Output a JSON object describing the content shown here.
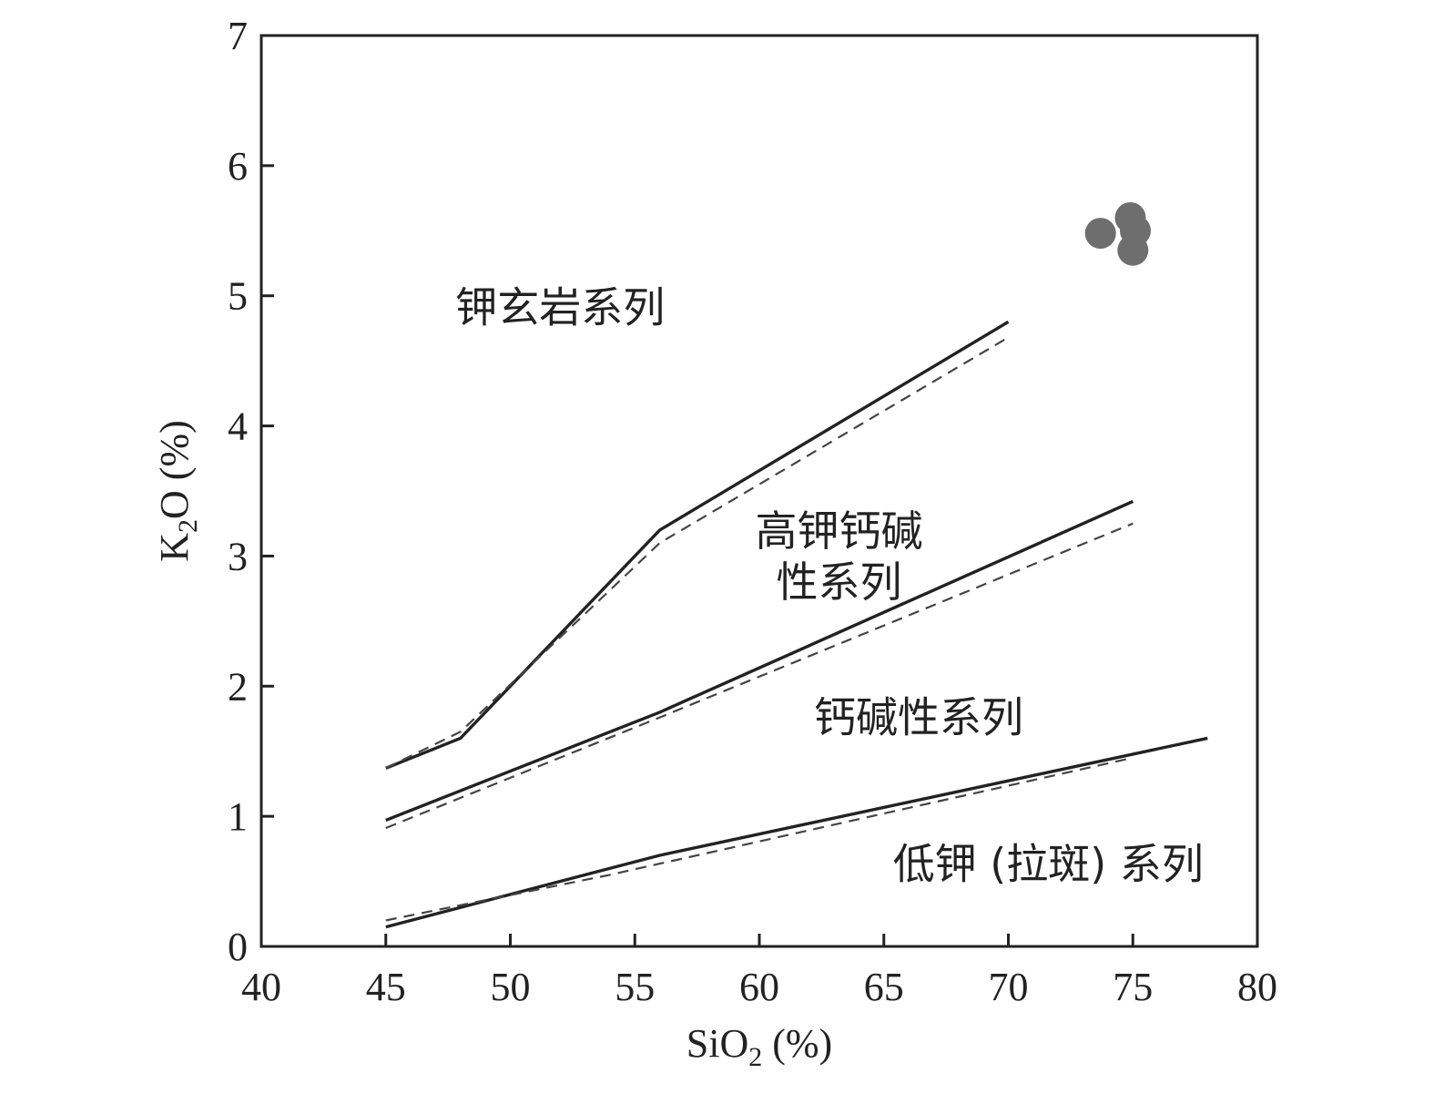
{
  "chart_data": {
    "type": "scatter",
    "title": "",
    "xlabel": "SiO",
    "xlabel_sub": "2",
    "xlabel_unit": " (%)",
    "ylabel": "K",
    "ylabel_sub": "2",
    "ylabel_unit": "O (%)",
    "xlim": [
      40,
      80
    ],
    "ylim": [
      0,
      7
    ],
    "xticks": [
      40,
      45,
      50,
      55,
      60,
      65,
      70,
      75,
      80
    ],
    "yticks": [
      0,
      1,
      2,
      3,
      4,
      5,
      6,
      7
    ],
    "grid": false,
    "boundary_lines": [
      {
        "style": "solid",
        "points": [
          [
            45,
            1.37
          ],
          [
            48,
            1.6
          ],
          [
            56,
            3.2
          ],
          [
            70,
            4.8
          ]
        ]
      },
      {
        "style": "dashed",
        "points": [
          [
            45,
            1.37
          ],
          [
            48,
            1.65
          ],
          [
            56,
            3.1
          ],
          [
            70,
            4.68
          ]
        ]
      },
      {
        "style": "solid",
        "points": [
          [
            45,
            0.97
          ],
          [
            56,
            1.8
          ],
          [
            75,
            3.42
          ]
        ]
      },
      {
        "style": "dashed",
        "points": [
          [
            45,
            0.91
          ],
          [
            56,
            1.76
          ],
          [
            75,
            3.25
          ]
        ]
      },
      {
        "style": "solid",
        "points": [
          [
            45,
            0.15
          ],
          [
            56,
            0.7
          ],
          [
            78,
            1.6
          ]
        ]
      },
      {
        "style": "dashed",
        "points": [
          [
            45,
            0.2
          ],
          [
            54,
            0.55
          ],
          [
            75,
            1.45
          ]
        ]
      }
    ],
    "samples": {
      "color": "#6e6e6e",
      "points": [
        [
          73.7,
          5.48
        ],
        [
          74.9,
          5.6
        ],
        [
          75.1,
          5.5
        ],
        [
          75.0,
          5.35
        ]
      ]
    },
    "region_labels": [
      {
        "lines": [
          "钾玄岩系列"
        ],
        "x": 52.0,
        "y": 4.8
      },
      {
        "lines": [
          "高钾钙碱",
          "性系列"
        ],
        "x": 63.2,
        "y": 3.08
      },
      {
        "lines": [
          "钙碱性系列"
        ],
        "x": 66.4,
        "y": 1.65
      },
      {
        "lines": [
          "低钾 (拉斑) 系列"
        ],
        "x": 71.6,
        "y": 0.52
      }
    ]
  }
}
